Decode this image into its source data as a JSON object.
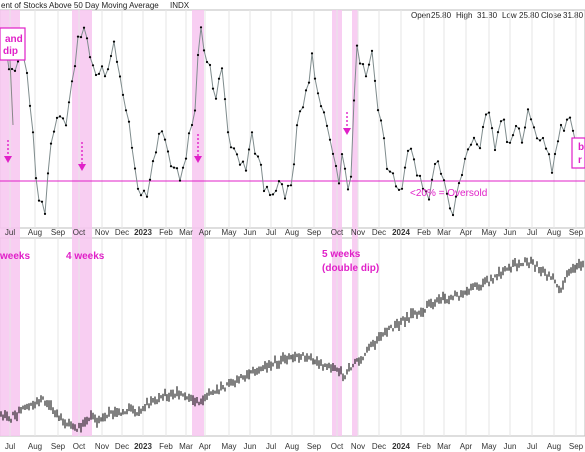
{
  "header": {
    "title": "ent of Stocks Above 50 Day Moving Average",
    "symbol": "INDX",
    "open_label": "Open",
    "open_value": "25.80",
    "high_label": "High",
    "high_value": "31.80",
    "low_label": "Low",
    "low_value": "25.80",
    "close_label": "Close",
    "close_value": "31.80"
  },
  "colors": {
    "breadth_line": "#7f8c8d",
    "breadth_points": "#000000",
    "highlight": "#f7c6f0",
    "annotation": "#e020c8",
    "price_bars": "#000000",
    "grid": "#e6e6e6"
  },
  "x_axis_labels_top": [
    "Jul",
    "Aug",
    "Sep",
    "Oct",
    "Nov",
    "Dec",
    "2023",
    "Feb",
    "Mar",
    "Apr",
    "May",
    "Jun",
    "Jul",
    "Aug",
    "Sep",
    "Oct",
    "Nov",
    "Dec",
    "2024",
    "Feb",
    "Mar",
    "Apr",
    "May",
    "Jun",
    "Jul",
    "Aug",
    "Sep"
  ],
  "x_axis_labels_bottom": [
    "Jul",
    "Aug",
    "Sep",
    "Oct",
    "Nov",
    "Dec",
    "2023",
    "Feb",
    "Mar",
    "Apr",
    "May",
    "Jun",
    "Jul",
    "Aug",
    "Sep",
    "Oct",
    "Nov",
    "Dec",
    "2024",
    "Feb",
    "Mar",
    "Apr",
    "May",
    "Jun",
    "Jul",
    "Aug",
    "Sep"
  ],
  "annotations": {
    "top_left_line1": "and",
    "top_left_line2": "dip",
    "oversold": "<20% = Oversold",
    "right_edge_1": "b",
    "right_edge_2": "r",
    "weeks_left": " weeks",
    "weeks_4": "4 weeks",
    "weeks_5_line1": "5 weeks",
    "weeks_5_line2": "(double dip)"
  },
  "chart_data": [
    {
      "type": "line",
      "title": "ent of Stocks Above 50 Day Moving Average",
      "x": [
        0,
        1,
        2,
        3,
        4,
        5,
        6,
        7,
        8,
        9,
        10,
        11,
        12,
        13,
        14,
        15,
        16,
        17,
        18,
        19,
        20,
        21,
        22,
        23,
        24,
        25,
        26,
        27,
        28,
        29,
        30,
        31,
        32,
        33,
        34,
        35,
        36,
        37,
        38,
        39,
        40,
        41,
        42,
        43,
        44,
        45,
        46,
        47,
        48,
        49,
        50,
        51,
        52,
        53,
        54,
        55,
        56,
        57,
        58,
        59,
        60,
        61,
        62,
        63,
        64,
        65,
        66,
        67,
        68,
        69,
        70,
        71,
        72,
        73,
        74,
        75,
        76,
        77,
        78,
        79,
        80,
        81,
        82,
        83,
        84,
        85,
        86,
        87,
        88,
        89,
        90,
        91,
        92,
        93,
        94,
        95,
        96,
        97,
        98,
        99,
        100,
        101,
        102,
        103,
        104,
        105,
        106,
        107,
        108,
        109,
        110,
        111,
        112,
        113,
        114,
        115,
        116,
        117,
        118,
        119,
        120,
        121,
        122,
        123,
        124,
        125,
        126,
        127,
        128,
        129,
        130,
        131,
        132,
        133,
        134,
        135,
        136,
        137,
        138,
        139,
        140,
        141,
        142,
        143,
        144,
        145,
        146,
        147,
        148,
        149,
        150,
        151,
        152,
        153,
        154,
        155,
        156,
        157,
        158,
        159,
        160,
        161,
        162,
        163,
        164,
        165,
        166,
        167,
        168,
        169,
        170,
        171,
        172,
        173,
        174,
        175,
        176,
        177,
        178,
        179,
        180,
        181,
        182,
        183,
        184,
        185,
        186,
        187,
        188,
        189,
        190,
        191,
        192,
        193,
        194,
        195,
        196,
        197,
        198,
        199,
        200,
        201,
        202,
        203,
        204,
        205,
        206,
        207,
        208,
        209,
        210,
        211,
        212,
        213,
        214,
        215,
        216,
        217,
        218,
        219,
        220,
        221,
        222,
        223,
        224,
        225,
        226,
        227,
        228,
        229,
        230,
        231,
        232,
        233,
        234,
        235,
        236,
        237,
        238,
        239,
        240,
        241,
        242,
        243,
        244,
        245,
        246,
        247,
        248,
        249,
        250,
        251,
        252,
        253,
        254,
        255,
        256,
        257,
        258,
        259,
        260,
        261,
        262,
        263,
        264,
        265,
        266,
        267,
        268,
        269,
        270,
        271,
        272,
        273,
        274,
        275,
        276,
        277,
        278,
        279,
        280,
        281,
        282,
        283,
        284,
        285,
        286,
        287,
        288,
        289,
        290,
        291,
        292,
        293,
        294,
        295,
        296,
        297,
        298,
        299,
        300,
        301,
        302,
        303,
        304,
        305,
        306,
        307,
        308,
        309,
        310,
        311,
        312,
        313,
        314,
        315,
        316,
        317,
        318,
        319,
        320,
        321,
        322,
        323,
        324,
        325,
        326,
        327,
        328,
        329,
        330,
        331,
        332,
        333,
        334,
        335,
        336,
        337,
        338,
        339,
        340,
        341,
        342,
        343,
        344,
        345,
        346,
        347,
        348,
        349,
        350,
        351,
        352,
        353,
        354,
        355,
        356,
        357,
        358,
        359,
        360,
        361,
        362,
        363,
        364,
        365,
        366,
        367,
        368,
        369,
        370,
        371,
        372,
        373,
        374,
        375,
        376,
        377,
        378,
        379,
        380,
        381,
        382,
        383,
        384,
        385,
        386,
        387,
        388,
        389,
        390,
        391,
        392,
        393,
        394,
        395,
        396,
        397,
        398,
        399,
        400,
        401,
        402,
        403,
        404,
        405,
        406,
        407,
        408,
        409,
        410,
        411,
        412,
        413,
        414,
        415,
        416,
        417,
        418,
        419,
        420,
        421,
        422,
        423,
        424,
        425,
        426,
        427,
        428,
        429,
        430,
        431,
        432,
        433,
        434,
        435,
        436,
        437,
        438,
        439,
        440,
        441,
        442,
        443,
        444,
        445,
        446,
        447,
        448,
        449,
        450,
        451,
        452,
        453,
        454,
        455,
        456,
        457,
        458,
        459,
        460,
        461,
        462,
        463,
        464,
        465,
        466,
        467,
        468,
        469,
        470,
        471,
        472,
        473,
        474,
        475,
        476,
        477,
        478,
        479,
        480,
        481,
        482,
        483,
        484,
        485,
        486,
        487,
        488,
        489,
        490,
        491,
        492,
        493,
        494,
        495,
        496,
        497,
        498,
        499,
        500,
        501,
        502,
        503,
        504,
        505,
        506,
        507,
        508,
        509,
        510,
        511,
        512,
        513,
        514,
        515,
        516,
        517,
        518,
        519,
        520,
        521,
        522,
        523,
        524,
        525,
        526,
        527,
        528,
        529,
        530,
        531,
        532,
        533,
        534,
        535,
        536,
        537,
        538,
        539,
        540,
        541,
        542,
        543,
        544,
        545,
        546,
        547,
        548,
        549,
        550,
        551,
        552,
        553,
        554,
        555,
        556,
        557,
        558,
        559,
        560,
        561,
        562,
        563,
        564,
        565,
        566,
        567,
        568,
        569,
        570,
        571,
        572,
        573,
        574,
        575,
        576,
        577,
        578,
        579,
        580,
        581,
        582,
        583,
        584
      ],
      "anchors_x": [
        0,
        5,
        10,
        15,
        20,
        24,
        30,
        38,
        45,
        52,
        58,
        65,
        72,
        78,
        85,
        92,
        100,
        108,
        115,
        122,
        130,
        138,
        145,
        152,
        158,
        165,
        172,
        180,
        188,
        195,
        200,
        208,
        215,
        222,
        230,
        238,
        245,
        252,
        258,
        265,
        272,
        280,
        286,
        292,
        298,
        305,
        312,
        318,
        325,
        332,
        338,
        343,
        348,
        352,
        356,
        360,
        366,
        372,
        380,
        388,
        395,
        402,
        408,
        415,
        422,
        430,
        438,
        445,
        452,
        458,
        465,
        472,
        480,
        488,
        495,
        502,
        508,
        515,
        522,
        530,
        538,
        545,
        552,
        560,
        568,
        575,
        580,
        585
      ],
      "anchors_y": [
        22,
        12,
        30,
        28,
        18,
        25,
        40,
        85,
        92,
        60,
        50,
        55,
        35,
        14,
        10,
        22,
        30,
        25,
        12,
        40,
        55,
        80,
        88,
        70,
        58,
        60,
        72,
        75,
        62,
        45,
        8,
        22,
        38,
        28,
        62,
        68,
        75,
        55,
        70,
        82,
        88,
        80,
        85,
        80,
        52,
        42,
        20,
        35,
        48,
        60,
        80,
        65,
        85,
        75,
        10,
        25,
        30,
        15,
        52,
        72,
        80,
        82,
        62,
        72,
        80,
        86,
        68,
        78,
        95,
        85,
        70,
        58,
        62,
        40,
        65,
        48,
        60,
        52,
        62,
        45,
        60,
        64,
        72,
        55,
        50,
        60,
        70,
        68
      ],
      "y_unit": "percent",
      "reference_line": {
        "value": 20,
        "label": "<20% = Oversold"
      },
      "ylim": [
        0,
        100
      ]
    },
    {
      "type": "bar",
      "title": "",
      "anchors_x": [
        0,
        10,
        20,
        30,
        40,
        48,
        55,
        62,
        70,
        76,
        82,
        90,
        98,
        108,
        118,
        128,
        138,
        148,
        158,
        168,
        178,
        188,
        196,
        202,
        210,
        220,
        230,
        240,
        250,
        260,
        270,
        280,
        290,
        300,
        310,
        320,
        330,
        338,
        344,
        350,
        356,
        362,
        370,
        380,
        390,
        400,
        410,
        420,
        430,
        440,
        450,
        460,
        470,
        480,
        490,
        500,
        510,
        520,
        530,
        540,
        548,
        555,
        560,
        568,
        575,
        585
      ],
      "anchors_y": [
        18,
        14,
        22,
        28,
        35,
        30,
        22,
        12,
        6,
        4,
        8,
        15,
        12,
        18,
        20,
        25,
        22,
        30,
        35,
        40,
        42,
        38,
        32,
        35,
        40,
        45,
        50,
        55,
        62,
        68,
        72,
        75,
        80,
        82,
        78,
        72,
        70,
        65,
        60,
        68,
        72,
        80,
        90,
        100,
        108,
        115,
        122,
        128,
        135,
        140,
        142,
        145,
        150,
        155,
        160,
        168,
        175,
        178,
        180,
        172,
        165,
        160,
        150,
        170,
        175,
        178
      ],
      "ylim": [
        0,
        200
      ]
    }
  ]
}
